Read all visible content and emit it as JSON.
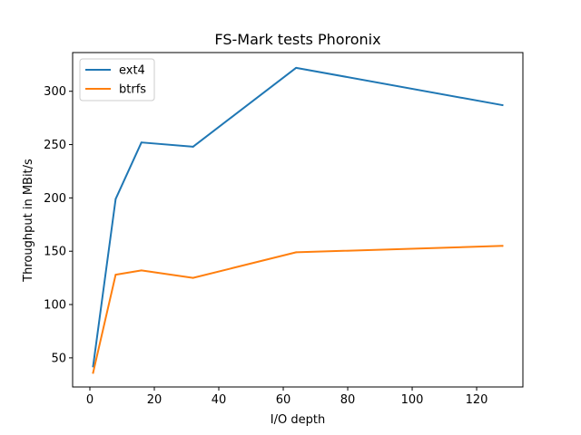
{
  "chart_data": {
    "type": "line",
    "title": "FS-Mark tests Phoronix",
    "xlabel": "I/O depth",
    "ylabel": "Throughput in MBit/s",
    "xlim": [
      -5.35,
      134.35
    ],
    "ylim": [
      22.7,
      336.3
    ],
    "xticks": [
      0,
      20,
      40,
      60,
      80,
      100,
      120
    ],
    "yticks": [
      50,
      100,
      150,
      200,
      250,
      300
    ],
    "grid": false,
    "legend_position": "upper-left",
    "series": [
      {
        "name": "ext4",
        "color": "#1f77b4",
        "x": [
          1,
          8,
          16,
          32,
          64,
          128
        ],
        "y": [
          42,
          199,
          252,
          248,
          322,
          287
        ]
      },
      {
        "name": "btrfs",
        "color": "#ff7f0e",
        "x": [
          1,
          8,
          16,
          32,
          64,
          128
        ],
        "y": [
          36,
          128,
          132,
          125,
          149,
          155
        ]
      }
    ]
  }
}
